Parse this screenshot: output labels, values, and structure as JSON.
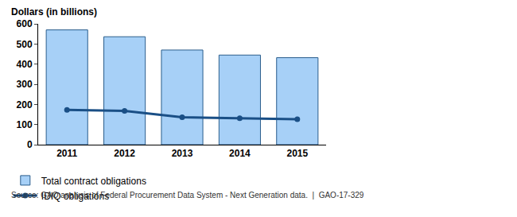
{
  "chart_data": {
    "type": "bar",
    "y_label": "Dollars (in billions)",
    "categories": [
      "2011",
      "2012",
      "2013",
      "2014",
      "2015"
    ],
    "series": [
      {
        "name": "Total contract obligations",
        "type": "bar",
        "color": "#a7d0f7",
        "values": [
          570,
          536,
          470,
          445,
          432
        ]
      },
      {
        "name": "IDIQ obligations",
        "type": "line",
        "color": "#1a4f86",
        "marker": "circle",
        "values": [
          173,
          168,
          136,
          131,
          126
        ]
      }
    ],
    "ylim": [
      0,
      600
    ],
    "yticks": [
      0,
      100,
      200,
      300,
      400,
      500,
      600
    ],
    "grid": false,
    "legend": "bottom",
    "annotations": [
      "Source: GAO analysis of Federal Procurement Data System - Next Generation data.  |  GAO-17-329"
    ]
  }
}
